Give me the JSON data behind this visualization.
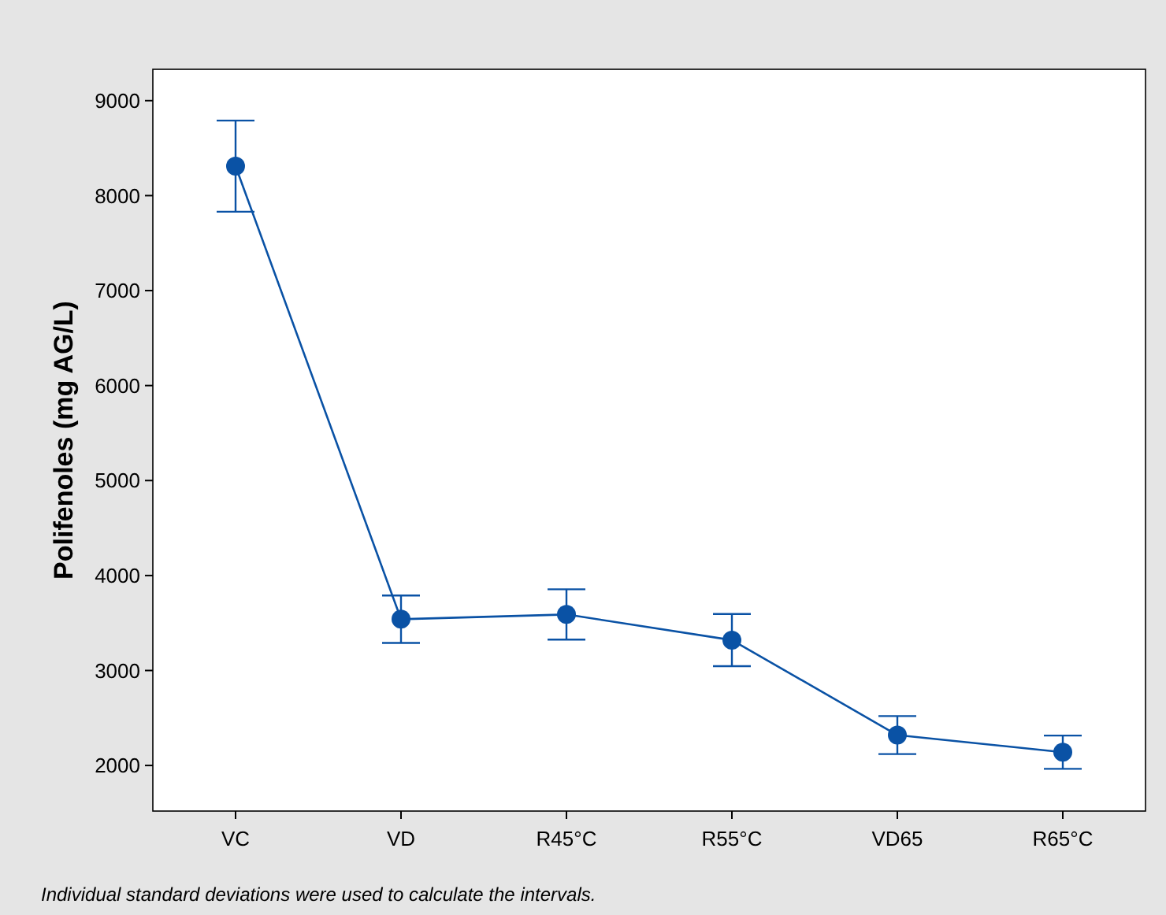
{
  "chart_data": {
    "type": "line",
    "ylabel": "Polifenoles (mg AG/L)",
    "categories": [
      "VC",
      "VD",
      "R45°C",
      "R55°C",
      "VD65",
      "R65°C"
    ],
    "series": [
      {
        "color": "#0a52a5",
        "values": [
          8310,
          3540,
          3590,
          3320,
          2320,
          2140
        ],
        "errors": [
          480,
          250,
          265,
          275,
          200,
          175
        ]
      }
    ],
    "ylim": [
      1520,
      9330
    ],
    "yticks": [
      2000,
      3000,
      4000,
      5000,
      6000,
      7000,
      8000,
      9000
    ],
    "marker": "circle",
    "line_style": "solid",
    "grid": false,
    "annotations": [
      "Individual standard deviations were used to calculate the intervals."
    ]
  }
}
